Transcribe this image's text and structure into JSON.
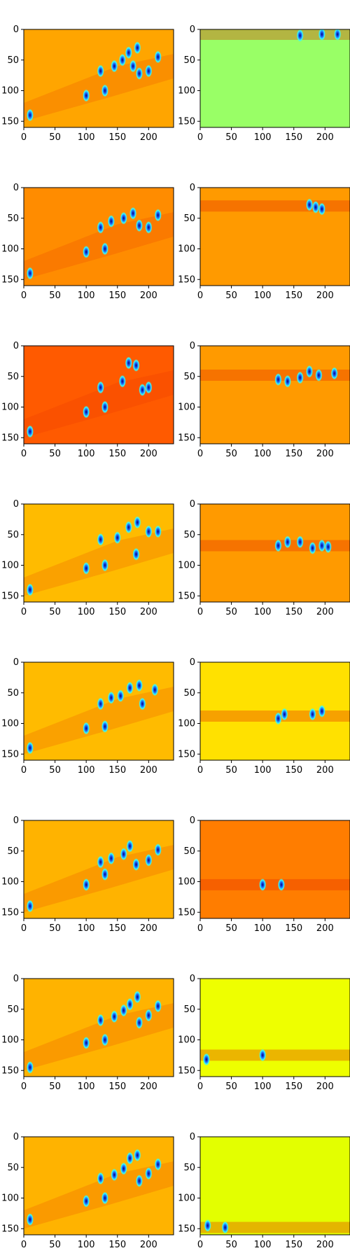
{
  "colors": {
    "jet_low": "#00007f",
    "jet_cyan": "#33ffff",
    "jet_yellow": "#ffee00",
    "jet_orange": "#ff9a00",
    "jet_red": "#e62a00"
  },
  "chart_data": {
    "type": "heatmap",
    "layout": "8 rows x 2 columns of image panels (matplotlib imshow, jet colormap)",
    "xticks": [
      0,
      50,
      100,
      150,
      200
    ],
    "yticks": [
      0,
      50,
      100,
      150
    ],
    "xlim": [
      0,
      240
    ],
    "ylim": [
      160,
      0
    ],
    "grid": false,
    "panels": [
      {
        "row": 1,
        "col": "left",
        "background": "#ffa500",
        "band_y": null,
        "blobs": [
          [
            100,
            108
          ],
          [
            123,
            68
          ],
          [
            130,
            100
          ],
          [
            145,
            60
          ],
          [
            158,
            50
          ],
          [
            168,
            38
          ],
          [
            182,
            30
          ],
          [
            175,
            60
          ],
          [
            185,
            72
          ],
          [
            200,
            68
          ],
          [
            215,
            45
          ],
          [
            10,
            140
          ]
        ]
      },
      {
        "row": 1,
        "col": "right",
        "background": "#99ff66",
        "band_y": 8,
        "blobs": [
          [
            160,
            10
          ],
          [
            195,
            8
          ],
          [
            220,
            8
          ]
        ]
      },
      {
        "row": 2,
        "col": "left",
        "background": "#ff8c00",
        "band_y": null,
        "blobs": [
          [
            100,
            105
          ],
          [
            123,
            65
          ],
          [
            130,
            100
          ],
          [
            140,
            55
          ],
          [
            160,
            50
          ],
          [
            175,
            42
          ],
          [
            185,
            62
          ],
          [
            200,
            65
          ],
          [
            215,
            45
          ],
          [
            10,
            140
          ]
        ]
      },
      {
        "row": 2,
        "col": "right",
        "background": "#ff9a00",
        "band_y": 30,
        "blobs": [
          [
            185,
            32
          ],
          [
            175,
            28
          ],
          [
            195,
            35
          ]
        ]
      },
      {
        "row": 3,
        "col": "left",
        "background": "#ff5a00",
        "band_y": null,
        "blobs": [
          [
            100,
            108
          ],
          [
            123,
            68
          ],
          [
            130,
            100
          ],
          [
            158,
            58
          ],
          [
            168,
            28
          ],
          [
            180,
            32
          ],
          [
            190,
            72
          ],
          [
            200,
            68
          ],
          [
            10,
            140
          ]
        ]
      },
      {
        "row": 3,
        "col": "right",
        "background": "#ff9a00",
        "band_y": 48,
        "blobs": [
          [
            125,
            55
          ],
          [
            140,
            58
          ],
          [
            160,
            52
          ],
          [
            175,
            42
          ],
          [
            190,
            48
          ],
          [
            215,
            45
          ]
        ]
      },
      {
        "row": 4,
        "col": "left",
        "background": "#ffbb00",
        "band_y": null,
        "blobs": [
          [
            100,
            105
          ],
          [
            123,
            58
          ],
          [
            130,
            100
          ],
          [
            150,
            55
          ],
          [
            168,
            38
          ],
          [
            182,
            30
          ],
          [
            180,
            82
          ],
          [
            200,
            45
          ],
          [
            215,
            45
          ],
          [
            10,
            140
          ]
        ]
      },
      {
        "row": 4,
        "col": "right",
        "background": "#ff9a00",
        "band_y": 68,
        "blobs": [
          [
            125,
            68
          ],
          [
            140,
            62
          ],
          [
            160,
            62
          ],
          [
            180,
            72
          ],
          [
            195,
            68
          ],
          [
            205,
            70
          ]
        ]
      },
      {
        "row": 5,
        "col": "left",
        "background": "#ffbb00",
        "band_y": null,
        "blobs": [
          [
            100,
            108
          ],
          [
            123,
            68
          ],
          [
            130,
            105
          ],
          [
            140,
            58
          ],
          [
            155,
            55
          ],
          [
            170,
            42
          ],
          [
            185,
            38
          ],
          [
            190,
            68
          ],
          [
            210,
            45
          ],
          [
            10,
            140
          ]
        ]
      },
      {
        "row": 5,
        "col": "right",
        "background": "#ffe100",
        "band_y": 88,
        "blobs": [
          [
            125,
            92
          ],
          [
            135,
            85
          ],
          [
            180,
            85
          ],
          [
            195,
            80
          ]
        ]
      },
      {
        "row": 6,
        "col": "left",
        "background": "#ffb300",
        "band_y": null,
        "blobs": [
          [
            100,
            105
          ],
          [
            123,
            68
          ],
          [
            130,
            88
          ],
          [
            140,
            62
          ],
          [
            160,
            55
          ],
          [
            170,
            42
          ],
          [
            180,
            72
          ],
          [
            200,
            65
          ],
          [
            215,
            48
          ],
          [
            10,
            140
          ]
        ]
      },
      {
        "row": 6,
        "col": "right",
        "background": "#ff7d00",
        "band_y": 105,
        "blobs": [
          [
            100,
            105
          ],
          [
            130,
            105
          ]
        ]
      },
      {
        "row": 7,
        "col": "left",
        "background": "#ffb300",
        "band_y": null,
        "blobs": [
          [
            100,
            105
          ],
          [
            123,
            68
          ],
          [
            130,
            100
          ],
          [
            145,
            62
          ],
          [
            160,
            52
          ],
          [
            170,
            42
          ],
          [
            182,
            30
          ],
          [
            185,
            72
          ],
          [
            200,
            60
          ],
          [
            215,
            45
          ],
          [
            10,
            145
          ]
        ]
      },
      {
        "row": 7,
        "col": "right",
        "background": "#eeff00",
        "band_y": 125,
        "blobs": [
          [
            10,
            132
          ],
          [
            100,
            125
          ]
        ]
      },
      {
        "row": 8,
        "col": "left",
        "background": "#ffb300",
        "band_y": null,
        "blobs": [
          [
            100,
            105
          ],
          [
            123,
            68
          ],
          [
            130,
            100
          ],
          [
            145,
            62
          ],
          [
            160,
            52
          ],
          [
            170,
            35
          ],
          [
            182,
            30
          ],
          [
            185,
            72
          ],
          [
            200,
            60
          ],
          [
            215,
            45
          ],
          [
            10,
            135
          ]
        ]
      },
      {
        "row": 8,
        "col": "right",
        "background": "#e3ff00",
        "band_y": 148,
        "blobs": [
          [
            12,
            145
          ],
          [
            40,
            148
          ]
        ]
      }
    ]
  }
}
